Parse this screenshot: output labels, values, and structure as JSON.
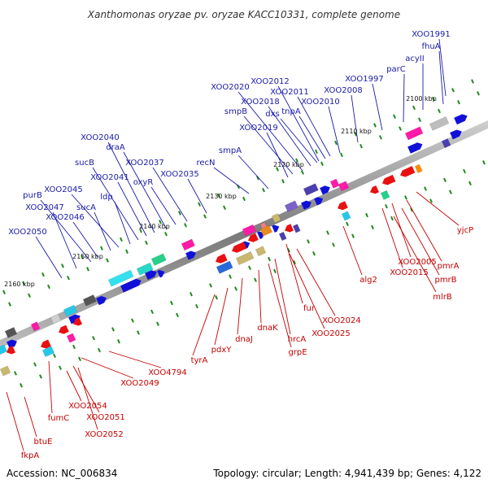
{
  "title": "Xanthomonas oryzae pv. oryzae KACC10331, complete genome",
  "footer": {
    "accession": "Accession: NC_006834",
    "summary": "Topology: circular; Length: 4,941,439 bp; Genes: 4,122"
  },
  "kbp_labels": [
    "2100 kbp",
    "2110 kbp",
    "2120 kbp",
    "2130 kbp",
    "2140 kbp",
    "2150 kbp",
    "2160 kbp"
  ],
  "top_genes": [
    "XOO1991",
    "fhuA",
    "acyII",
    "parC",
    "XOO1997",
    "XOO2008",
    "XOO2010",
    "XOO2011",
    "tnpA",
    "XOO2012",
    "dxs",
    "XOO2018",
    "XOO2020",
    "smpB",
    "XOO2019",
    "smpA",
    "recN",
    "XOO2035",
    "XOO2037",
    "oxyR",
    "draA",
    "XOO2040",
    "XOO2041",
    "sucB",
    "ldp",
    "XOO2045",
    "purB",
    "sucA",
    "XOO2047",
    "XOO2046",
    "XOO2050"
  ],
  "bottom_genes": [
    "yjcP",
    "pmrA",
    "XOO2005",
    "pmrB",
    "XOO2015",
    "mlrB",
    "alg2",
    "fur",
    "XOO2024",
    "XOO2025",
    "hrcA",
    "grpE",
    "dnaK",
    "dnaJ",
    "pdxY",
    "tyrA",
    "XOO4794",
    "XOO2049",
    "XOO2051",
    "XOO2054",
    "XOO2052",
    "fumC",
    "btuE",
    "fkpA"
  ],
  "colors": {
    "forward_gene": "#1010d8",
    "reverse_gene": "#e81010",
    "backbone": "#8c8c8c",
    "tick": "#1d8a1d",
    "label_top": "#1a1aa8",
    "label_bottom": "#c40000"
  }
}
